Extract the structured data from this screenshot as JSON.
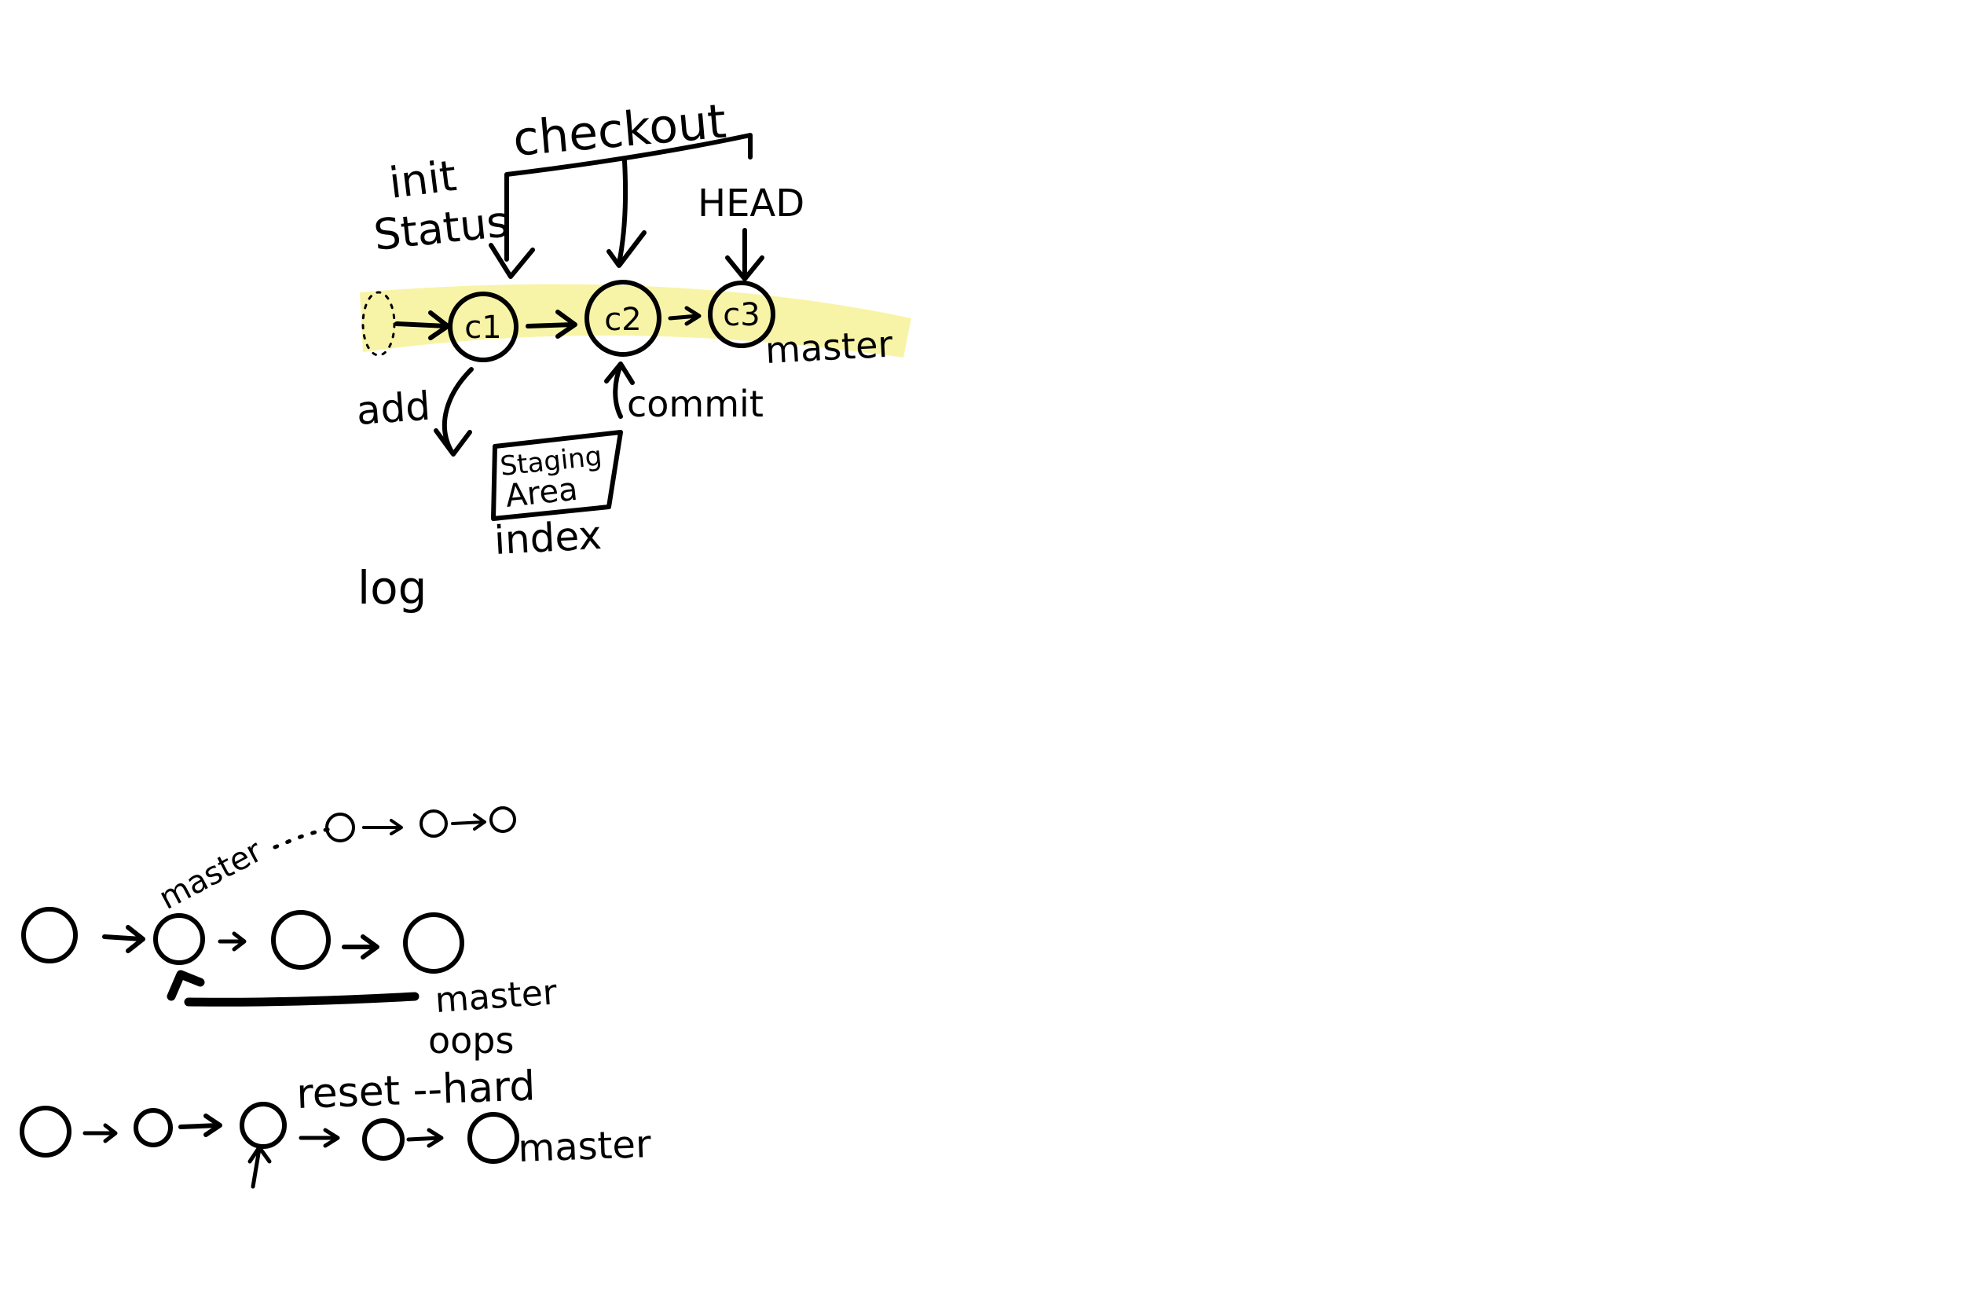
{
  "colors": {
    "ink": "#000000",
    "highlight": "#f5f08a",
    "node_fill": "#f8f3a0",
    "background": "#ffffff"
  },
  "top": {
    "commands": {
      "init": "init",
      "status": "Status",
      "checkout": "checkout",
      "add": "add",
      "commit": "commit",
      "log": "log"
    },
    "head": "HEAD",
    "branch": "master",
    "commits": [
      "c1",
      "c2",
      "c3"
    ],
    "staging": {
      "line1": "Staging",
      "line2": "Area",
      "caption": "index"
    }
  },
  "middle": {
    "master_top": "master",
    "master_bottom": "master",
    "oops": "oops"
  },
  "bottom": {
    "reset": "reset --hard",
    "master": "master"
  }
}
